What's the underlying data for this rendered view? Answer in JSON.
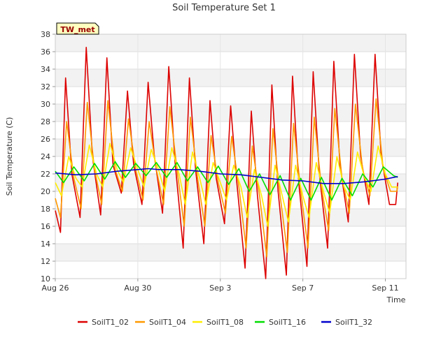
{
  "chart_data": {
    "type": "line",
    "title": "Soil Temperature Set 1",
    "xlabel": "Time",
    "ylabel": "Soil Temperature (C)",
    "badge": "TW_met",
    "ylim": [
      10,
      38
    ],
    "yticks": [
      10,
      12,
      14,
      16,
      18,
      20,
      22,
      24,
      26,
      28,
      30,
      32,
      34,
      36,
      38
    ],
    "xlim": [
      0,
      17
    ],
    "xticks": [
      {
        "value": 0,
        "label": "Aug 26"
      },
      {
        "value": 4,
        "label": "Aug 30"
      },
      {
        "value": 8,
        "label": "Sep 3"
      },
      {
        "value": 12,
        "label": "Sep 7"
      },
      {
        "value": 16,
        "label": "Sep 11"
      }
    ],
    "series": [
      {
        "name": "SoilT1_02",
        "color": "#dd0000",
        "x": [
          0.0,
          0.25,
          0.5,
          0.8,
          1.2,
          1.5,
          1.8,
          2.2,
          2.5,
          2.8,
          3.2,
          3.5,
          3.8,
          4.2,
          4.5,
          4.8,
          5.2,
          5.5,
          5.8,
          6.2,
          6.5,
          6.8,
          7.2,
          7.5,
          7.8,
          8.2,
          8.5,
          8.8,
          9.2,
          9.5,
          9.8,
          10.2,
          10.5,
          10.8,
          11.2,
          11.5,
          11.8,
          12.2,
          12.5,
          12.8,
          13.2,
          13.5,
          13.8,
          14.2,
          14.5,
          14.8,
          15.2,
          15.5,
          15.8,
          16.2,
          16.5,
          16.6
        ],
        "y": [
          17.8,
          15.3,
          33.0,
          22.0,
          17.0,
          36.5,
          24.0,
          17.3,
          35.3,
          23.0,
          19.8,
          31.5,
          23.0,
          18.5,
          32.5,
          24.0,
          17.5,
          34.3,
          23.5,
          13.5,
          33.0,
          22.5,
          14.0,
          30.4,
          21.5,
          16.3,
          29.8,
          21.0,
          11.2,
          29.2,
          19.5,
          10.0,
          32.2,
          20.0,
          10.4,
          33.2,
          21.0,
          11.4,
          33.7,
          22.0,
          13.5,
          34.9,
          23.0,
          16.5,
          35.7,
          24.0,
          18.5,
          35.7,
          24.0,
          18.5,
          18.5,
          21.0
        ]
      },
      {
        "name": "SoilT1_04",
        "color": "#ff9900",
        "x": [
          0.0,
          0.25,
          0.55,
          0.9,
          1.25,
          1.55,
          1.9,
          2.25,
          2.55,
          2.9,
          3.25,
          3.55,
          3.9,
          4.25,
          4.55,
          4.9,
          5.25,
          5.55,
          5.9,
          6.25,
          6.55,
          6.9,
          7.25,
          7.55,
          7.9,
          8.25,
          8.55,
          8.9,
          9.25,
          9.55,
          9.9,
          10.25,
          10.55,
          10.9,
          11.25,
          11.55,
          11.9,
          12.25,
          12.55,
          12.9,
          13.25,
          13.55,
          13.9,
          14.25,
          14.55,
          14.9,
          15.25,
          15.55,
          15.9,
          16.25,
          16.55,
          16.6
        ],
        "y": [
          19.2,
          17.0,
          28.0,
          21.5,
          18.0,
          30.2,
          22.5,
          18.5,
          30.4,
          22.5,
          20.0,
          28.3,
          22.5,
          19.0,
          28.0,
          22.5,
          18.5,
          29.7,
          22.5,
          16.0,
          28.5,
          21.5,
          16.0,
          26.4,
          21.0,
          17.5,
          26.3,
          20.5,
          13.5,
          25.2,
          19.5,
          12.5,
          27.2,
          19.5,
          13.0,
          27.8,
          20.0,
          13.5,
          28.5,
          20.5,
          15.5,
          29.5,
          21.5,
          17.5,
          30.0,
          22.5,
          19.5,
          30.6,
          22.5,
          20.0,
          20.0,
          20.5
        ]
      },
      {
        "name": "SoilT1_08",
        "color": "#ffee00",
        "x": [
          0.0,
          0.3,
          0.65,
          1.0,
          1.3,
          1.65,
          2.0,
          2.3,
          2.65,
          3.0,
          3.3,
          3.65,
          4.0,
          4.3,
          4.65,
          5.0,
          5.3,
          5.65,
          6.0,
          6.3,
          6.65,
          7.0,
          7.3,
          7.65,
          8.0,
          8.3,
          8.65,
          9.0,
          9.3,
          9.65,
          10.0,
          10.3,
          10.65,
          11.0,
          11.3,
          11.65,
          12.0,
          12.3,
          12.65,
          13.0,
          13.3,
          13.65,
          14.0,
          14.3,
          14.65,
          15.0,
          15.3,
          15.65,
          16.0,
          16.3,
          16.6
        ],
        "y": [
          21.0,
          19.5,
          24.0,
          21.5,
          20.5,
          25.3,
          22.0,
          20.5,
          25.5,
          22.5,
          21.0,
          25.0,
          22.5,
          20.5,
          24.8,
          22.5,
          20.0,
          25.0,
          22.0,
          18.5,
          24.5,
          21.5,
          18.5,
          23.3,
          21.0,
          19.0,
          23.0,
          20.5,
          17.0,
          22.5,
          19.5,
          16.0,
          23.0,
          19.5,
          16.5,
          23.0,
          19.5,
          17.0,
          23.3,
          20.0,
          17.5,
          24.0,
          20.5,
          19.0,
          24.5,
          21.5,
          20.0,
          25.2,
          22.0,
          20.5,
          20.5
        ]
      },
      {
        "name": "SoilT1_16",
        "color": "#00dd00",
        "x": [
          0.0,
          0.4,
          0.9,
          1.4,
          1.9,
          2.4,
          2.9,
          3.4,
          3.9,
          4.4,
          4.9,
          5.4,
          5.9,
          6.4,
          6.9,
          7.4,
          7.9,
          8.4,
          8.9,
          9.4,
          9.9,
          10.4,
          10.9,
          11.4,
          11.9,
          12.4,
          12.9,
          13.4,
          13.9,
          14.4,
          14.9,
          15.4,
          15.9,
          16.4,
          16.6
        ],
        "y": [
          22.3,
          21.0,
          22.8,
          21.2,
          23.2,
          21.4,
          23.4,
          21.6,
          23.2,
          21.8,
          23.3,
          21.6,
          23.3,
          21.2,
          22.8,
          21.0,
          22.9,
          20.8,
          22.6,
          20.0,
          22.0,
          19.6,
          21.8,
          19.0,
          21.5,
          19.0,
          21.6,
          19.0,
          21.5,
          19.5,
          22.0,
          20.5,
          22.8,
          21.8,
          21.6
        ]
      },
      {
        "name": "SoilT1_32",
        "color": "#0000cc",
        "x": [
          0.0,
          1.0,
          2.0,
          3.0,
          4.0,
          4.5,
          5.0,
          6.0,
          7.0,
          8.0,
          9.0,
          10.0,
          11.0,
          12.0,
          13.0,
          14.0,
          15.0,
          16.0,
          16.6
        ],
        "y": [
          22.1,
          21.9,
          22.0,
          22.3,
          22.5,
          22.6,
          22.5,
          22.5,
          22.3,
          22.0,
          21.9,
          21.6,
          21.3,
          21.2,
          20.9,
          20.9,
          21.1,
          21.4,
          21.7
        ]
      }
    ]
  }
}
